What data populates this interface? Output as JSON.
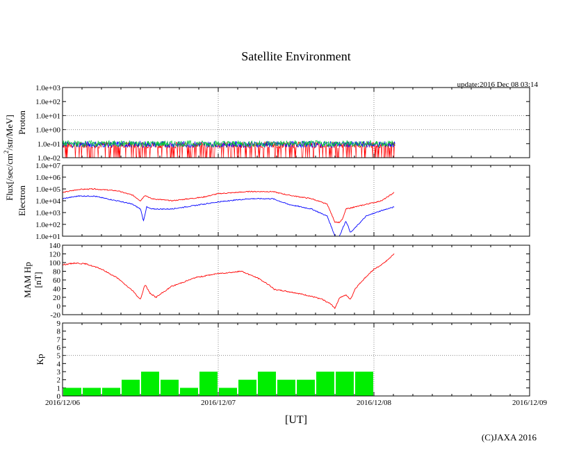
{
  "title": "Satellite Environment",
  "update_text": "update:2016 Dec 08 03:14",
  "copyright": "(C)JAXA 2016",
  "x_axis": {
    "label": "[UT]",
    "ticks": [
      "2016/12/06",
      "2016/12/07",
      "2016/12/08",
      "2016/12/09"
    ]
  },
  "flux_label": {
    "base": "Flux[/sec/cm",
    "sup": "2",
    "rest": "/str/MeV]"
  },
  "colors": {
    "red": "#ff0000",
    "blue": "#0000ff",
    "green": "#00cc33",
    "kp_bar": "#00ee00",
    "grid": "#888888"
  },
  "chart_data": [
    {
      "type": "line",
      "panel": "proton",
      "ylabel": "Proton",
      "yscale": "log",
      "ylim": [
        0.01,
        1000
      ],
      "y_ticks": [
        "1.0e-02",
        "1.0e-01",
        "1.0e+00",
        "1.0e+01",
        "1.0e+02",
        "1.0e+03"
      ],
      "xlim": [
        "2016/12/06",
        "2016/12/09"
      ],
      "data_end": "2016/12/08 03:14",
      "series": [
        {
          "color": "red",
          "level": 0.08,
          "spikes_down_to": 0.01
        },
        {
          "color": "blue",
          "level": 0.09
        },
        {
          "color": "green",
          "level": 0.1
        }
      ]
    },
    {
      "type": "line",
      "panel": "electron",
      "ylabel": "Electron",
      "yscale": "log",
      "ylim": [
        10,
        10000000
      ],
      "y_ticks": [
        "1.0e+01",
        "1.0e+02",
        "1.0e+03",
        "1.0e+04",
        "1.0e+05",
        "1.0e+06",
        "1.0e+07"
      ],
      "xlim": [
        "2016/12/06",
        "2016/12/09"
      ],
      "series": [
        {
          "color": "red",
          "x": [
            0,
            0.1,
            0.2,
            0.35,
            0.45,
            0.5,
            0.53,
            0.57,
            0.7,
            0.9,
            1.0,
            1.2,
            1.35,
            1.45,
            1.6,
            1.7,
            1.75,
            1.78,
            1.8,
            1.82,
            1.88,
            1.95,
            2.05,
            2.13
          ],
          "y": [
            50000,
            90000,
            100000,
            70000,
            30000,
            10000,
            30000,
            15000,
            10000,
            20000,
            40000,
            60000,
            60000,
            30000,
            15000,
            5000,
            150,
            150,
            300,
            2000,
            3000,
            5000,
            10000,
            50000
          ]
        },
        {
          "color": "blue",
          "x": [
            0,
            0.1,
            0.2,
            0.35,
            0.45,
            0.5,
            0.52,
            0.54,
            0.57,
            0.7,
            0.9,
            1.0,
            1.2,
            1.35,
            1.45,
            1.6,
            1.7,
            1.75,
            1.78,
            1.8,
            1.82,
            1.85,
            1.95,
            2.05,
            2.13
          ],
          "y": [
            15000,
            25000,
            25000,
            10000,
            5000,
            2000,
            200,
            3000,
            2000,
            2000,
            5000,
            8000,
            15000,
            15000,
            5000,
            2000,
            500,
            10,
            10,
            50,
            200,
            20,
            500,
            1500,
            3000
          ]
        }
      ]
    },
    {
      "type": "line",
      "panel": "mam_hp",
      "ylabel": "MAM Hp",
      "ylabel2": "[nT]",
      "ylim": [
        -20,
        140
      ],
      "y_ticks": [
        "-20",
        "0",
        "20",
        "40",
        "60",
        "80",
        "100",
        "120",
        "140"
      ],
      "xlim": [
        "2016/12/06",
        "2016/12/09"
      ],
      "series": [
        {
          "color": "red",
          "x": [
            0,
            0.08,
            0.15,
            0.25,
            0.35,
            0.45,
            0.5,
            0.53,
            0.56,
            0.6,
            0.7,
            0.85,
            1.0,
            1.1,
            1.15,
            1.25,
            1.33,
            1.36,
            1.42,
            1.5,
            1.6,
            1.67,
            1.72,
            1.75,
            1.78,
            1.82,
            1.85,
            1.88,
            1.93,
            2.0,
            2.05,
            2.1,
            2.13
          ],
          "y": [
            95,
            99,
            97,
            85,
            65,
            35,
            15,
            50,
            30,
            20,
            45,
            65,
            75,
            78,
            80,
            65,
            48,
            38,
            35,
            30,
            22,
            15,
            5,
            -5,
            20,
            25,
            15,
            40,
            60,
            85,
            95,
            110,
            120
          ]
        }
      ]
    },
    {
      "type": "bar",
      "panel": "kp",
      "ylabel": "Kp",
      "ylim": [
        0,
        9
      ],
      "y_ticks": [
        "0",
        "1",
        "2",
        "3",
        "4",
        "5",
        "6",
        "7",
        "8",
        "9"
      ],
      "xlim": [
        "2016/12/06",
        "2016/12/09"
      ],
      "bin_hours": 3,
      "values": [
        1,
        1,
        1,
        2,
        3,
        2,
        1,
        3,
        1,
        2,
        3,
        2,
        2,
        3,
        3,
        3
      ]
    }
  ]
}
